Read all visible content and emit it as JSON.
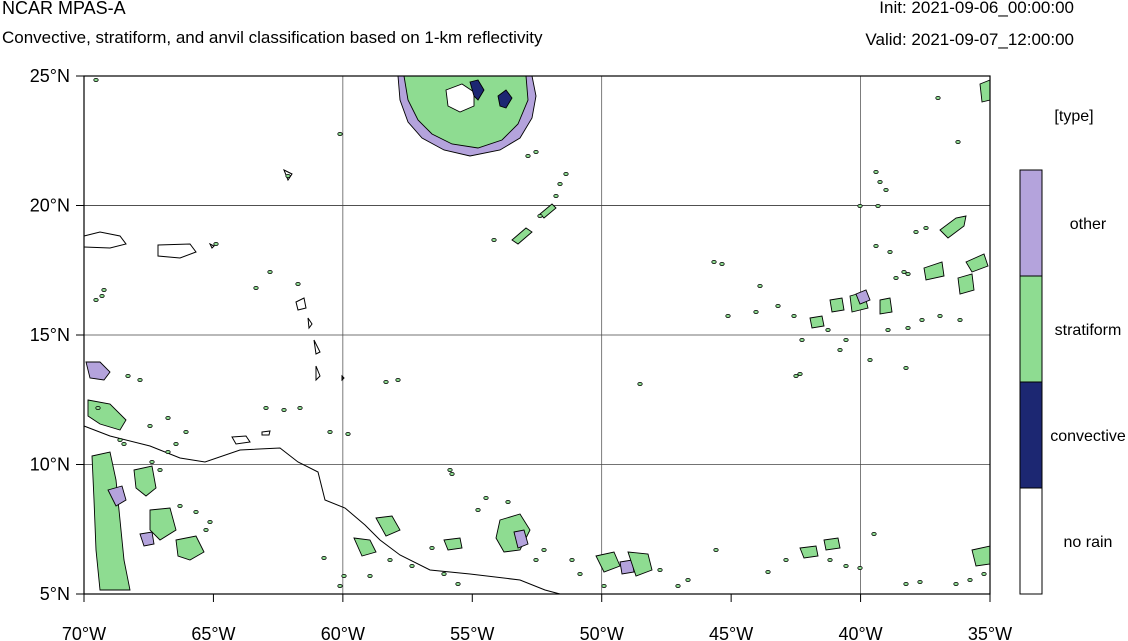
{
  "header": {
    "model": "NCAR MPAS-A",
    "description": "Convective, stratiform, and anvil classification based on 1-km reflectivity",
    "init": "Init: 2021-09-06_00:00:00",
    "valid": "Valid: 2021-09-07_12:00:00"
  },
  "map": {
    "lon_range": [
      -70,
      -35
    ],
    "lat_range": [
      5,
      25
    ],
    "lat_ticks": [
      {
        "value": 25,
        "label": "25°N"
      },
      {
        "value": 20,
        "label": "20°N"
      },
      {
        "value": 15,
        "label": "15°N"
      },
      {
        "value": 10,
        "label": "10°N"
      },
      {
        "value": 5,
        "label": "5°N"
      }
    ],
    "lon_ticks": [
      {
        "value": -70,
        "label": "70°W"
      },
      {
        "value": -65,
        "label": "65°W"
      },
      {
        "value": -60,
        "label": "60°W"
      },
      {
        "value": -55,
        "label": "55°W"
      },
      {
        "value": -50,
        "label": "50°W"
      },
      {
        "value": -45,
        "label": "45°W"
      },
      {
        "value": -40,
        "label": "40°W"
      },
      {
        "value": -35,
        "label": "35°W"
      }
    ],
    "gridlines": true
  },
  "legend": {
    "title": "[type]",
    "entries": [
      {
        "label": "other",
        "color": "#b4a3dc"
      },
      {
        "label": "stratiform",
        "color": "#8edc91"
      },
      {
        "label": "convective",
        "color": "#1c2772"
      },
      {
        "label": "no rain",
        "color": "#ffffff"
      }
    ]
  }
}
